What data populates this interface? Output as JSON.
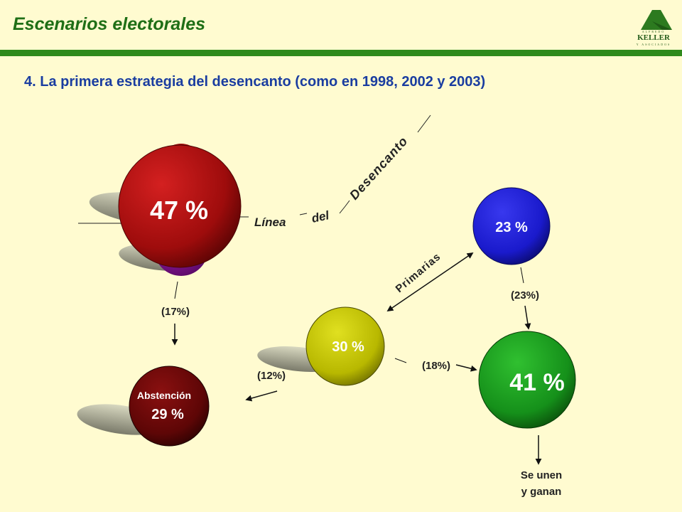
{
  "header": {
    "title": "Escenarios electorales",
    "subtitle": "4. La primera estrategia del desencanto (como en 1998, 2002 y 2003)"
  },
  "logo": {
    "small_text": "ALFREDO",
    "name": "KELLER",
    "sub_text": "Y ASOCIADOS"
  },
  "diagram": {
    "nodes": {
      "big_red": {
        "value": "47 %",
        "color": "#b01010"
      },
      "blue": {
        "value": "23 %",
        "color": "#2222cc"
      },
      "yellow": {
        "value": "30 %",
        "color": "#c8c800"
      },
      "green": {
        "value": "41 %",
        "color": "#1a9a1a"
      },
      "abstention": {
        "label": "Abstención",
        "value": "29 %",
        "color": "#6a0606"
      }
    },
    "flows": {
      "red_to_abstention": "(17%)",
      "blue_to_green": "(23%)",
      "yellow_to_green": "(18%)",
      "yellow_to_abstention": "(12%)"
    },
    "line_words": [
      "Línea",
      "del",
      "Desencanto"
    ],
    "primaries_label": "Primarias",
    "outcome": [
      "Se unen",
      "y ganan"
    ]
  }
}
